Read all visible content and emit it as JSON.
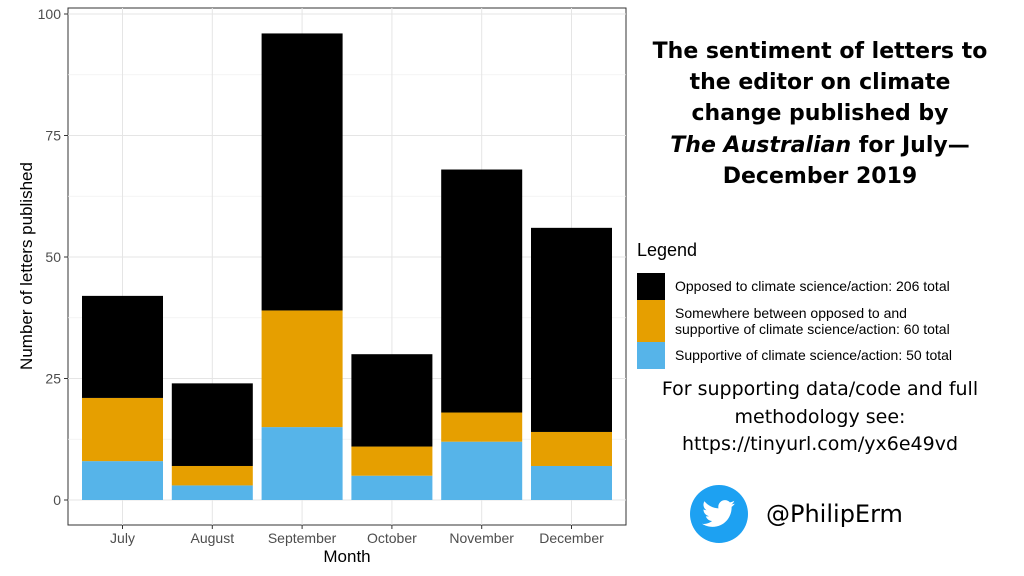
{
  "chart_data": {
    "type": "bar",
    "stacked": true,
    "title_lines": [
      "The sentiment of letters to",
      "the editor on climate",
      "change published by"
    ],
    "title_italic": "The Australian",
    "title_line4_rest": " for July—",
    "title_line5": "December 2019",
    "xlabel": "Month",
    "ylabel": "Number of letters published",
    "categories": [
      "July",
      "August",
      "September",
      "October",
      "November",
      "December"
    ],
    "ylim": [
      0,
      100
    ],
    "yticks": [
      0,
      25,
      50,
      75,
      100
    ],
    "grid": true,
    "series": [
      {
        "name": "Supportive of climate science/action: 50 total",
        "color": "#56b4e9",
        "values": [
          8,
          3,
          15,
          5,
          12,
          7
        ]
      },
      {
        "name": "Somewhere between opposed to and supportive of climate science/action: 60 total",
        "color": "#e69f00",
        "values": [
          13,
          4,
          24,
          6,
          6,
          7
        ]
      },
      {
        "name": "Opposed to climate science/action: 206 total",
        "color": "#000000",
        "values": [
          21,
          17,
          57,
          19,
          50,
          42
        ]
      }
    ]
  },
  "legend": {
    "title": "Legend",
    "items": [
      {
        "label": "Opposed to climate science/action: 206 total",
        "color": "#000000"
      },
      {
        "label_line1": "Somewhere between opposed to and",
        "label_line2": "supportive of climate science/action: 60 total",
        "color": "#e69f00"
      },
      {
        "label": "Supportive of climate science/action: 50 total",
        "color": "#56b4e9"
      }
    ]
  },
  "info": {
    "line1": "For supporting data/code and full",
    "line2": "methodology see:",
    "line3": "https://tinyurl.com/yx6e49vd"
  },
  "social": {
    "handle": "@PhilipErm",
    "icon": "twitter-bird-icon",
    "color": "#1da1f2"
  }
}
